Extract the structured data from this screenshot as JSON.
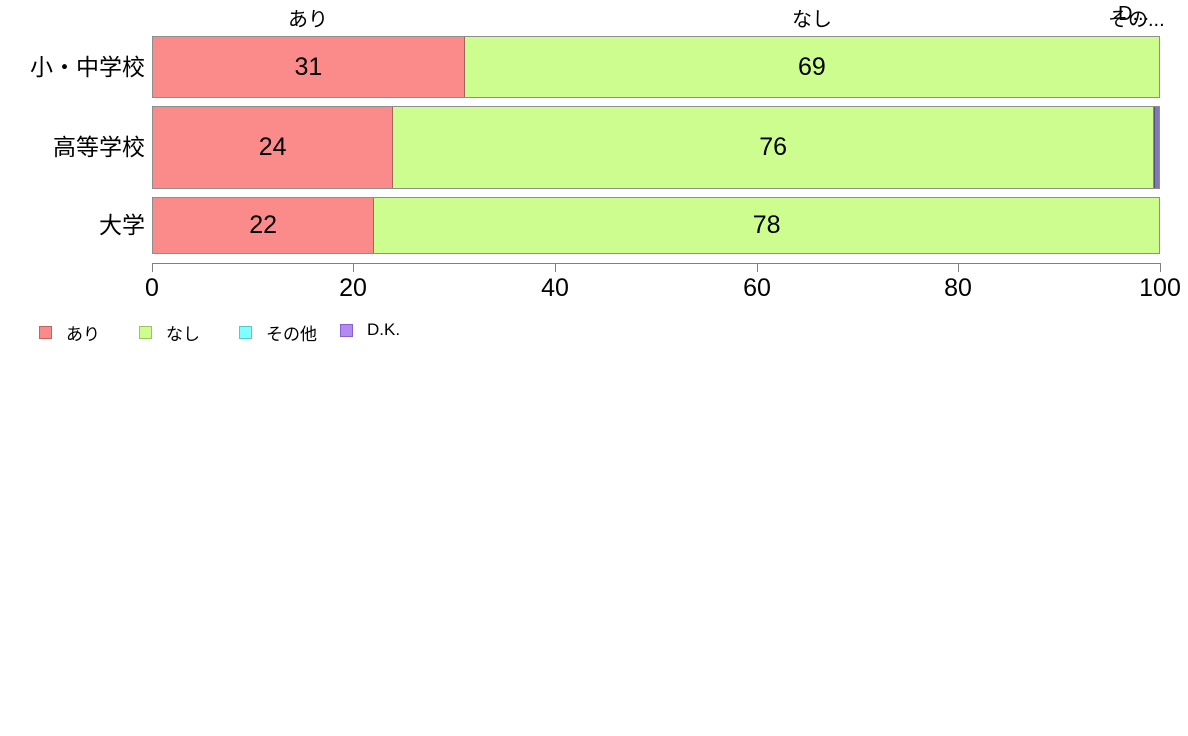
{
  "chart_data": {
    "type": "bar",
    "orientation": "horizontal-stacked",
    "title": "",
    "xlabel": "",
    "ylabel": "",
    "categories": [
      "小・中学校",
      "高等学校",
      "大学"
    ],
    "series": [
      {
        "name": "あり",
        "color": "#fb8b8b",
        "values": [
          31,
          24,
          22
        ]
      },
      {
        "name": "なし",
        "color": "#ccfd8e",
        "values": [
          69,
          76,
          78
        ]
      },
      {
        "name": "その他",
        "color": "#80ffff",
        "values": [
          0,
          0,
          0
        ]
      },
      {
        "name": "D.K.",
        "color": "#b38bef",
        "values": [
          0,
          0.5,
          0
        ]
      }
    ],
    "value_labels": [
      [
        "31",
        "69"
      ],
      [
        "24",
        "76"
      ],
      [
        "22",
        "78"
      ]
    ],
    "xlim": [
      0,
      100
    ],
    "x_ticks": [
      "0",
      "20",
      "40",
      "60",
      "80",
      "100"
    ],
    "grid": false,
    "legend_position": "bottom-left"
  },
  "top_labels": {
    "ari": "あり",
    "nashi": "なし",
    "sonota_truncated": "その...",
    "dk_truncated": "D..."
  },
  "legend": {
    "items": [
      {
        "label": "あり",
        "color": "#fb8b8b"
      },
      {
        "label": "なし",
        "color": "#ccfd8e"
      },
      {
        "label": "その他",
        "color": "#80ffff"
      },
      {
        "label": "D.K.",
        "color": "#b38bef"
      }
    ]
  }
}
